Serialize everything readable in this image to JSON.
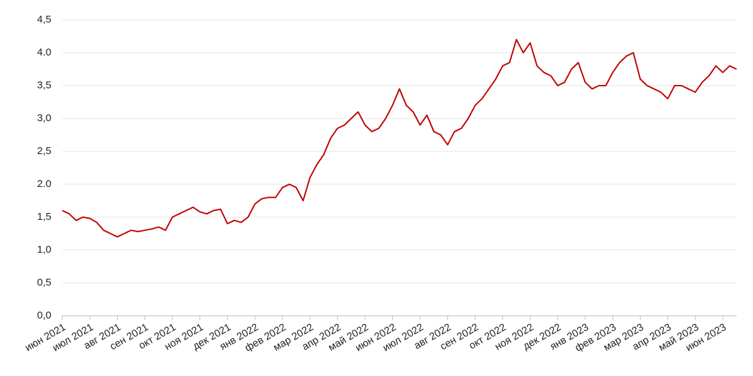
{
  "chart_data": {
    "type": "line",
    "categories": [
      "июн 2021",
      null,
      null,
      null,
      "июл 2021",
      null,
      null,
      null,
      "авг 2021",
      null,
      null,
      null,
      "сен 2021",
      null,
      null,
      null,
      "окт 2021",
      null,
      null,
      null,
      "ноя 2021",
      null,
      null,
      null,
      "дек 2021",
      null,
      null,
      null,
      "янв 2022",
      null,
      null,
      null,
      "фев 2022",
      null,
      null,
      null,
      "мар 2022",
      null,
      null,
      null,
      "апр 2022",
      null,
      null,
      null,
      "май 2022",
      null,
      null,
      null,
      "июн 2022",
      null,
      null,
      null,
      "июл 2022",
      null,
      null,
      null,
      "авг 2022",
      null,
      null,
      null,
      "сен 2022",
      null,
      null,
      null,
      "окт 2022",
      null,
      null,
      null,
      "ноя 2022",
      null,
      null,
      null,
      "дек 2022",
      null,
      null,
      null,
      "янв 2023",
      null,
      null,
      null,
      "фев 2023",
      null,
      null,
      null,
      "мар 2023",
      null,
      null,
      null,
      "апр 2023",
      null,
      null,
      null,
      "май 2023",
      null,
      null,
      null,
      "июн 2023",
      null,
      null
    ],
    "series": [
      {
        "color": "#c00000",
        "values": [
          1.6,
          1.55,
          1.45,
          1.5,
          1.48,
          1.42,
          1.3,
          1.25,
          1.2,
          1.25,
          1.3,
          1.28,
          1.3,
          1.32,
          1.35,
          1.3,
          1.5,
          1.55,
          1.6,
          1.65,
          1.58,
          1.55,
          1.6,
          1.62,
          1.4,
          1.45,
          1.42,
          1.5,
          1.7,
          1.78,
          1.8,
          1.8,
          1.95,
          2.0,
          1.95,
          1.75,
          2.1,
          2.3,
          2.45,
          2.7,
          2.85,
          2.9,
          3.0,
          3.1,
          2.9,
          2.8,
          2.85,
          3.0,
          3.2,
          3.45,
          3.2,
          3.1,
          2.9,
          3.05,
          2.8,
          2.75,
          2.6,
          2.8,
          2.85,
          3.0,
          3.2,
          3.3,
          3.45,
          3.6,
          3.8,
          3.85,
          4.2,
          4.0,
          4.15,
          3.8,
          3.7,
          3.65,
          3.5,
          3.55,
          3.75,
          3.85,
          3.55,
          3.45,
          3.5,
          3.5,
          3.7,
          3.85,
          3.95,
          4.0,
          3.6,
          3.5,
          3.45,
          3.4,
          3.3,
          3.5,
          3.5,
          3.45,
          3.4,
          3.55,
          3.65,
          3.8,
          3.7,
          3.8,
          3.75
        ]
      }
    ],
    "ylim": [
      0,
      4.5
    ],
    "yticks": [
      {
        "value": 0,
        "label": "0,0"
      },
      {
        "value": 0.5,
        "label": "0,5"
      },
      {
        "value": 1,
        "label": "1,0"
      },
      {
        "value": 1.5,
        "label": "1,5"
      },
      {
        "value": 2,
        "label": "2.0"
      },
      {
        "value": 2.5,
        "label": "2,5"
      },
      {
        "value": 3,
        "label": "3,0"
      },
      {
        "value": 3.5,
        "label": "3,5"
      },
      {
        "value": 4,
        "label": "4.0"
      },
      {
        "value": 4.5,
        "label": "4,5"
      }
    ],
    "grid": true
  }
}
